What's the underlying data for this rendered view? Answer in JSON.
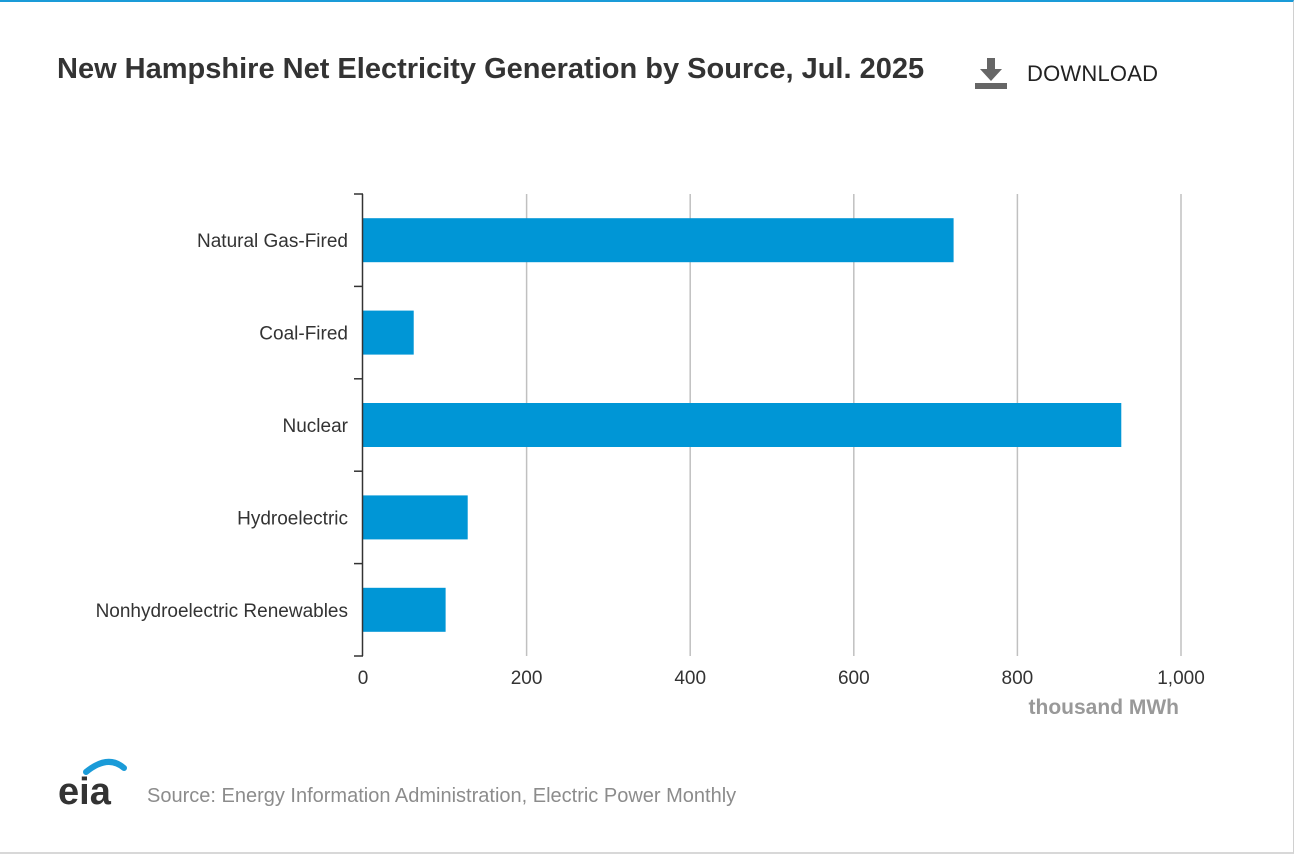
{
  "header": {
    "title": "New Hampshire Net Electricity Generation by Source, Jul. 2025",
    "download_label": "DOWNLOAD",
    "download_icon": "download-icon"
  },
  "footer": {
    "logo_text": "eia",
    "source": "Source: Energy Information Administration, Electric Power Monthly"
  },
  "colors": {
    "bar": "#0096d6",
    "grid": "#c0c0c0",
    "axis": "#333333",
    "accent": "#1a9bd8"
  },
  "chart_data": {
    "type": "bar",
    "orientation": "horizontal",
    "categories": [
      "Natural Gas-Fired",
      "Coal-Fired",
      "Nuclear",
      "Hydroelectric",
      "Nonhydroelectric Renewables"
    ],
    "values": [
      722,
      62,
      927,
      128,
      101
    ],
    "xlim": [
      0,
      1000
    ],
    "x_ticks": [
      0,
      200,
      400,
      600,
      800,
      1000
    ],
    "x_tick_labels": [
      "0",
      "200",
      "400",
      "600",
      "800",
      "1,000"
    ],
    "xlabel": "thousand MWh",
    "grid": true
  }
}
